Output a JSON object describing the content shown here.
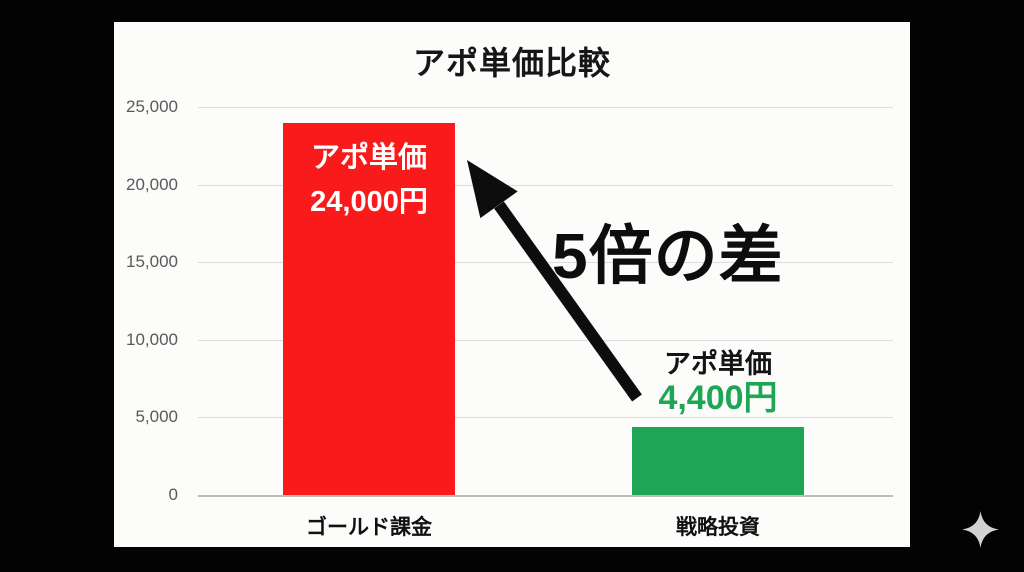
{
  "chart_data": {
    "type": "bar",
    "title": "アポ単価比較",
    "categories": [
      "ゴールド課金",
      "戦略投資"
    ],
    "values": [
      24000,
      4400
    ],
    "bar_colors": [
      "#f91b1b",
      "#1ea555"
    ],
    "xlabel": "",
    "ylabel": "",
    "ylim": [
      0,
      25000
    ],
    "yticks": [
      0,
      5000,
      10000,
      15000,
      20000,
      25000
    ],
    "ytick_labels": [
      "0",
      "5,000",
      "10,000",
      "15,000",
      "20,000",
      "25,000"
    ],
    "grid": true,
    "legend": false,
    "grid_color": "#dcdcdc",
    "axis_color": "#bdbdbd",
    "tick_text_color": "#5a5a5a",
    "bar_value_labels": [
      {
        "line1": "アポ単価",
        "line2": "24,000円",
        "placement": "inside-top",
        "line1_color": "#ffffff",
        "line2_color": "#ffffff"
      },
      {
        "line1": "アポ単価",
        "line2": "4,400円",
        "placement": "above-bar",
        "line1_color": "#141414",
        "line2_color": "#1ea555"
      }
    ],
    "annotation": {
      "text": "5倍の差",
      "color": "#0d0d0d",
      "has_arrow": true
    }
  },
  "watermark": {
    "icon": "sparkle-icon",
    "color": "#d2d2d2"
  }
}
